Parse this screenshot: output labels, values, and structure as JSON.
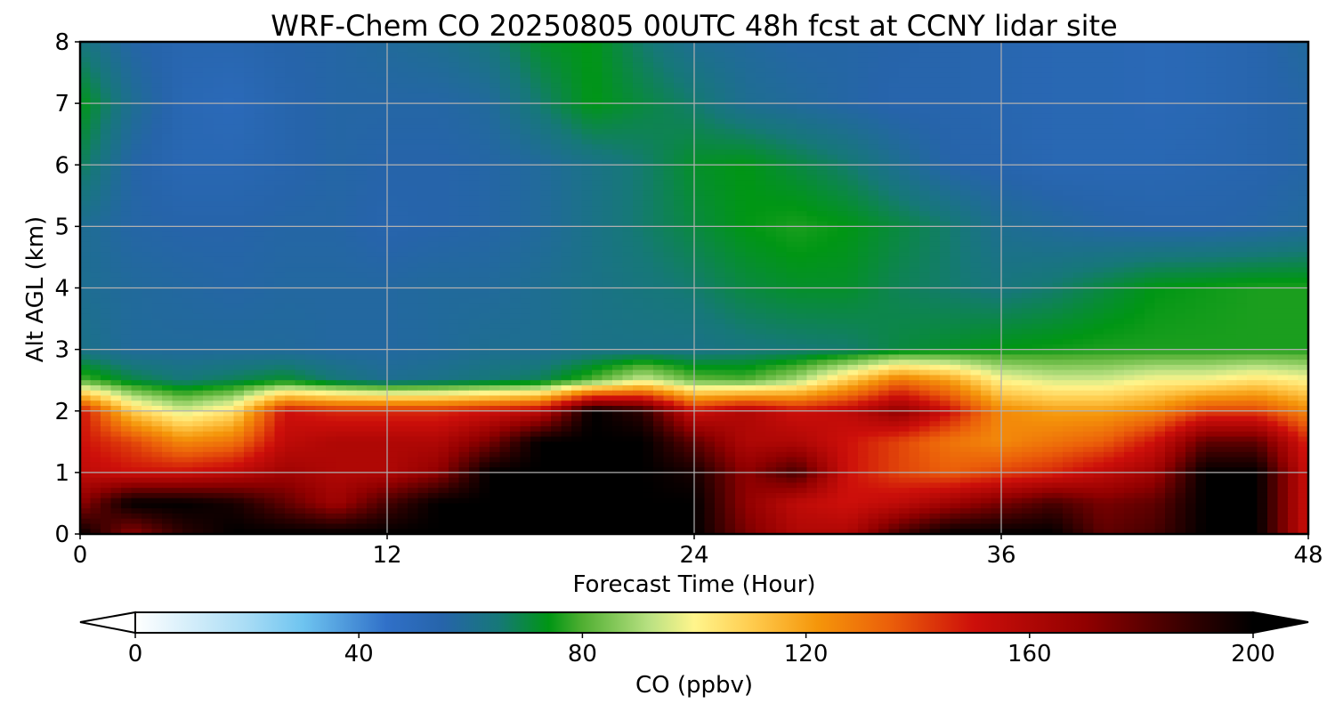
{
  "chart_data": {
    "type": "heatmap",
    "title": "WRF-Chem CO  20250805 00UTC 48h fcst at CCNY lidar site",
    "xlabel": "Forecast Time (Hour)",
    "ylabel": "Alt AGL (km)",
    "xlim": [
      0,
      48
    ],
    "ylim": [
      0,
      8
    ],
    "xticks": [
      "0",
      "12",
      "24",
      "36",
      "48"
    ],
    "yticks": [
      "0",
      "1",
      "2",
      "3",
      "4",
      "5",
      "6",
      "7",
      "8"
    ],
    "grid": true,
    "colorbar": {
      "label": "CO  (ppbv)",
      "ticks": [
        "0",
        "40",
        "80",
        "120",
        "160",
        "200"
      ],
      "range": [
        0,
        200
      ],
      "extend": "both"
    },
    "hours": [
      0,
      2,
      4,
      6,
      8,
      10,
      12,
      14,
      16,
      18,
      20,
      22,
      24,
      26,
      28,
      30,
      32,
      34,
      36,
      38,
      40,
      42,
      44,
      46,
      48
    ],
    "altitude_km": [
      0,
      0.5,
      1,
      1.5,
      2,
      2.5,
      3,
      4,
      5,
      6,
      7,
      8
    ],
    "co_ppbv": [
      [
        200,
        170,
        190,
        200,
        200,
        200,
        200,
        200,
        200,
        200,
        200,
        200,
        200,
        175,
        160,
        160,
        185,
        200,
        200,
        200,
        180,
        185,
        200,
        200,
        150
      ],
      [
        170,
        200,
        200,
        195,
        180,
        165,
        185,
        200,
        200,
        200,
        200,
        200,
        200,
        170,
        155,
        150,
        155,
        165,
        175,
        185,
        175,
        180,
        200,
        200,
        150
      ],
      [
        155,
        150,
        150,
        155,
        165,
        160,
        160,
        170,
        200,
        200,
        200,
        200,
        195,
        170,
        185,
        150,
        140,
        135,
        140,
        145,
        155,
        165,
        200,
        200,
        150
      ],
      [
        150,
        140,
        125,
        130,
        155,
        160,
        160,
        160,
        175,
        200,
        200,
        200,
        180,
        160,
        160,
        150,
        140,
        130,
        125,
        130,
        135,
        150,
        180,
        180,
        145
      ],
      [
        150,
        110,
        95,
        105,
        150,
        145,
        145,
        145,
        150,
        155,
        200,
        190,
        150,
        160,
        150,
        155,
        170,
        150,
        125,
        120,
        120,
        125,
        140,
        140,
        125
      ],
      [
        80,
        70,
        65,
        68,
        72,
        65,
        60,
        62,
        65,
        68,
        80,
        95,
        82,
        80,
        90,
        110,
        130,
        120,
        100,
        95,
        95,
        100,
        100,
        105,
        100
      ],
      [
        62,
        58,
        58,
        58,
        58,
        57,
        57,
        58,
        60,
        60,
        62,
        62,
        62,
        64,
        65,
        66,
        70,
        72,
        74,
        75,
        76,
        76,
        76,
        76,
        76
      ],
      [
        60,
        58,
        57,
        56,
        57,
        57,
        57,
        58,
        58,
        60,
        62,
        64,
        66,
        70,
        72,
        72,
        68,
        66,
        64,
        66,
        70,
        74,
        75,
        76,
        76
      ],
      [
        60,
        56,
        55,
        55,
        56,
        56,
        54,
        55,
        56,
        58,
        62,
        66,
        70,
        74,
        76,
        74,
        70,
        66,
        60,
        58,
        56,
        55,
        55,
        56,
        58
      ],
      [
        68,
        56,
        52,
        52,
        54,
        56,
        55,
        55,
        56,
        58,
        62,
        66,
        72,
        74,
        70,
        66,
        60,
        55,
        54,
        52,
        52,
        52,
        53,
        54,
        56
      ],
      [
        74,
        60,
        52,
        50,
        54,
        56,
        56,
        56,
        58,
        66,
        74,
        70,
        66,
        60,
        58,
        56,
        54,
        54,
        53,
        52,
        52,
        51,
        52,
        54,
        56
      ],
      [
        64,
        56,
        53,
        53,
        55,
        56,
        58,
        60,
        64,
        72,
        74,
        66,
        60,
        58,
        56,
        56,
        55,
        54,
        53,
        52,
        52,
        51,
        52,
        54,
        58
      ]
    ]
  }
}
